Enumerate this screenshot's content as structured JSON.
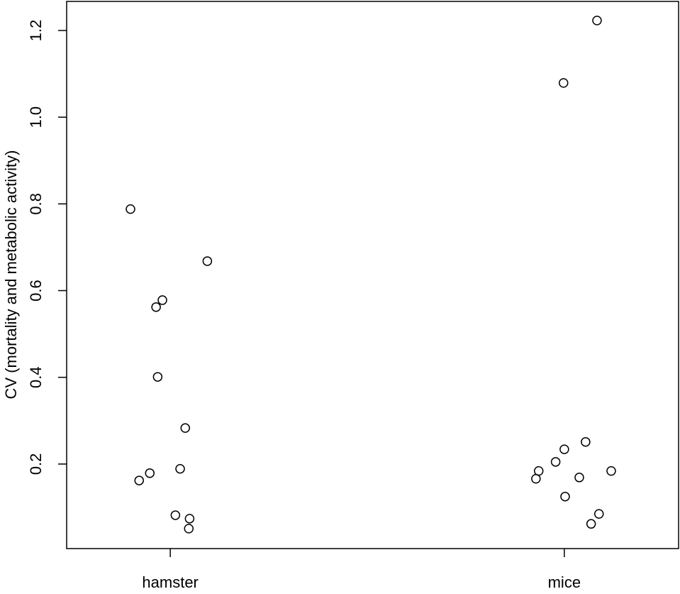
{
  "chart_data": {
    "type": "scatter",
    "ylabel": "CV (mortality and metabolic activity)",
    "xlim": [
      0.737,
      2.29
    ],
    "ylim": [
      0.005,
      1.267
    ],
    "xticks": [
      {
        "value": 1,
        "label": "hamster"
      },
      {
        "value": 2,
        "label": "mice"
      }
    ],
    "yticks": [
      0.2,
      0.4,
      0.6,
      0.8,
      {
        "value": 1,
        "label": "1.0"
      },
      1.2
    ],
    "color": "#000000",
    "series": [
      {
        "x": [
          0.899,
          1.094,
          0.98,
          0.964,
          0.968,
          1.038,
          1.025,
          0.948,
          0.921,
          1.013,
          1.049,
          1.047
        ],
        "values": [
          0.788,
          0.668,
          0.578,
          0.562,
          0.401,
          0.283,
          0.189,
          0.179,
          0.162,
          0.082,
          0.074,
          0.051
        ]
      },
      {
        "x": [
          2.083,
          1.998,
          2.054,
          2.0,
          1.978,
          1.935,
          2.119,
          1.928,
          2.038,
          2.002,
          2.088,
          2.068
        ],
        "values": [
          1.223,
          1.079,
          0.251,
          0.234,
          0.205,
          0.184,
          0.184,
          0.166,
          0.169,
          0.125,
          0.085,
          0.062
        ]
      }
    ]
  }
}
